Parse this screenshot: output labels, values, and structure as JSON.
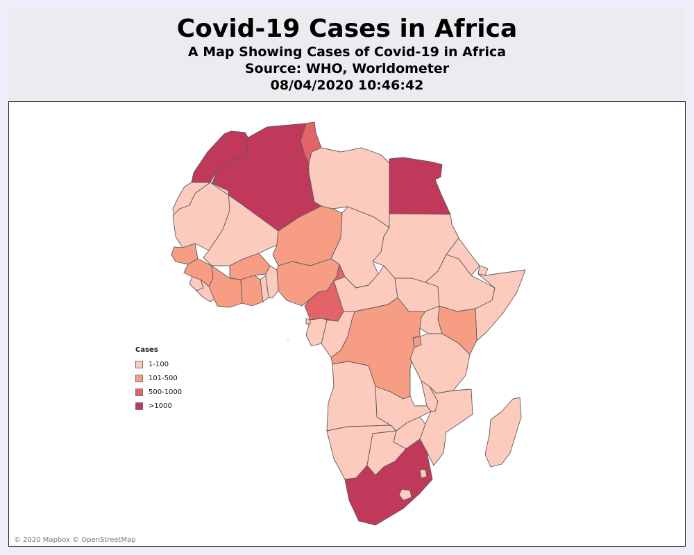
{
  "header": {
    "title": "Covid-19 Cases in Africa",
    "subtitle": "A Map Showing Cases of Covid-19 in Africa",
    "source": "Source: WHO, Worldometer",
    "timestamp": "08/04/2020 10:46:42"
  },
  "legend": {
    "title": "Cases",
    "items": [
      {
        "label": "1-100",
        "color": "#fdcbbd"
      },
      {
        "label": "101-500",
        "color": "#f79d84"
      },
      {
        "label": "500-1000",
        "color": "#e26468"
      },
      {
        "label": ">1000",
        "color": "#c0395a"
      }
    ]
  },
  "attribution": "© 2020 Mapbox © OpenStreetMap",
  "regions": [
    {
      "name": "Morocco",
      "bin": ">1000"
    },
    {
      "name": "Algeria",
      "bin": ">1000"
    },
    {
      "name": "Tunisia",
      "bin": "500-1000"
    },
    {
      "name": "Libya",
      "bin": "1-100"
    },
    {
      "name": "Egypt",
      "bin": ">1000"
    },
    {
      "name": "Western Sahara",
      "bin": "1-100"
    },
    {
      "name": "Mauritania",
      "bin": "1-100"
    },
    {
      "name": "Mali",
      "bin": "1-100"
    },
    {
      "name": "Niger",
      "bin": "101-500"
    },
    {
      "name": "Chad",
      "bin": "1-100"
    },
    {
      "name": "Sudan",
      "bin": "1-100"
    },
    {
      "name": "Senegal",
      "bin": "101-500"
    },
    {
      "name": "Guinea",
      "bin": "101-500"
    },
    {
      "name": "Sierra Leone",
      "bin": "1-100"
    },
    {
      "name": "Liberia",
      "bin": "1-100"
    },
    {
      "name": "Ivory Coast",
      "bin": "101-500"
    },
    {
      "name": "Burkina Faso",
      "bin": "101-500"
    },
    {
      "name": "Ghana",
      "bin": "101-500"
    },
    {
      "name": "Togo",
      "bin": "1-100"
    },
    {
      "name": "Benin",
      "bin": "1-100"
    },
    {
      "name": "Nigeria",
      "bin": "101-500"
    },
    {
      "name": "Cameroon",
      "bin": "500-1000"
    },
    {
      "name": "Central African Republic",
      "bin": "1-100"
    },
    {
      "name": "South Sudan",
      "bin": "1-100"
    },
    {
      "name": "Ethiopia",
      "bin": "1-100"
    },
    {
      "name": "Eritrea",
      "bin": "1-100"
    },
    {
      "name": "Djibouti",
      "bin": "1-100"
    },
    {
      "name": "Somalia",
      "bin": "1-100"
    },
    {
      "name": "Kenya",
      "bin": "101-500"
    },
    {
      "name": "Uganda",
      "bin": "1-100"
    },
    {
      "name": "Rwanda",
      "bin": "101-500"
    },
    {
      "name": "DR Congo",
      "bin": "101-500"
    },
    {
      "name": "Congo",
      "bin": "1-100"
    },
    {
      "name": "Gabon",
      "bin": "1-100"
    },
    {
      "name": "Equatorial Guinea",
      "bin": "1-100"
    },
    {
      "name": "Tanzania",
      "bin": "1-100"
    },
    {
      "name": "Angola",
      "bin": "1-100"
    },
    {
      "name": "Zambia",
      "bin": "1-100"
    },
    {
      "name": "Malawi",
      "bin": "1-100"
    },
    {
      "name": "Mozambique",
      "bin": "1-100"
    },
    {
      "name": "Zimbabwe",
      "bin": "1-100"
    },
    {
      "name": "Namibia",
      "bin": "1-100"
    },
    {
      "name": "Botswana",
      "bin": "1-100"
    },
    {
      "name": "South Africa",
      "bin": ">1000"
    },
    {
      "name": "Lesotho",
      "bin": "1-100"
    },
    {
      "name": "Eswatini",
      "bin": "1-100"
    },
    {
      "name": "Madagascar",
      "bin": "1-100"
    }
  ]
}
